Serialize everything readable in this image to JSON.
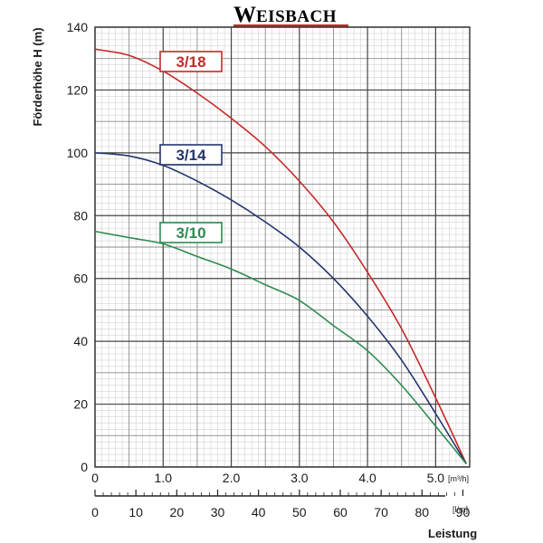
{
  "brand": {
    "initial": "W",
    "rest": "EISBACH",
    "color": "#c62828"
  },
  "chart_data": {
    "type": "line",
    "title": "",
    "ylabel": "Förderhöhe   H (m)",
    "xlabel": "Leistung",
    "ylim": [
      0,
      140
    ],
    "y_ticks": [
      0,
      20,
      40,
      60,
      80,
      100,
      120,
      140
    ],
    "x_primary": {
      "unit": "[m³/h]",
      "range": [
        0,
        5.5
      ],
      "tick_labels": [
        "0",
        "1.0",
        "2.0",
        "3.0",
        "4.0",
        "5.0"
      ],
      "tick_values": [
        0,
        1,
        2,
        3,
        4,
        5
      ]
    },
    "x_secondary": {
      "unit": "[l/m]",
      "range": [
        0,
        91.7
      ],
      "tick_labels": [
        "0",
        "10",
        "20",
        "30",
        "40",
        "50",
        "60",
        "70",
        "80",
        "90"
      ],
      "tick_values": [
        0,
        10,
        20,
        30,
        40,
        50,
        60,
        70,
        80,
        90
      ]
    },
    "grid": true,
    "series": [
      {
        "name": "3/18",
        "color": "#c62828",
        "x": [
          0,
          0.5,
          1.0,
          1.5,
          2.0,
          2.5,
          3.0,
          3.5,
          4.0,
          4.5,
          5.0,
          5.45
        ],
        "y": [
          133,
          131,
          126,
          119,
          111,
          102,
          91,
          78,
          62,
          44,
          22,
          1
        ]
      },
      {
        "name": "3/14",
        "color": "#24356d",
        "x": [
          0,
          0.5,
          1.0,
          1.5,
          2.0,
          2.5,
          3.0,
          3.5,
          4.0,
          4.5,
          5.0,
          5.45
        ],
        "y": [
          100,
          99,
          96,
          91,
          85,
          78,
          70,
          60,
          48,
          34,
          17,
          1
        ]
      },
      {
        "name": "3/10",
        "color": "#2e8b4f",
        "x": [
          0,
          0.5,
          1.0,
          1.5,
          2.0,
          2.5,
          3.0,
          3.5,
          4.0,
          4.5,
          5.0,
          5.45
        ],
        "y": [
          75,
          73,
          71,
          67,
          63,
          58,
          53,
          45,
          37,
          26,
          13,
          1
        ]
      }
    ]
  }
}
